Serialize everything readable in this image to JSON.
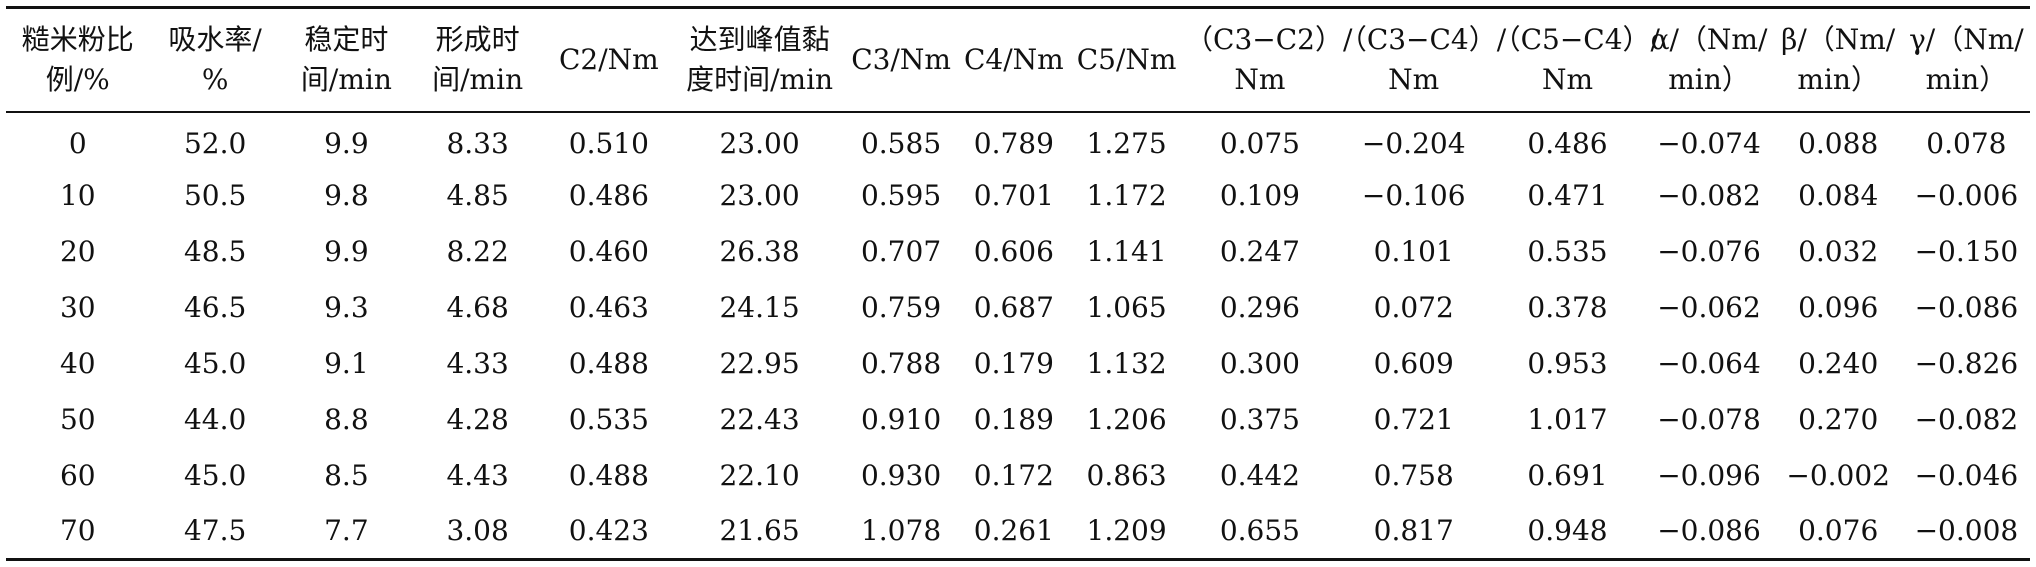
{
  "table": {
    "headers": [
      "糙米粉比\n例/%",
      "吸水率/\n%",
      "稳定时\n间/min",
      "形成时\n间/min",
      "C2/Nm",
      "达到峰值黏\n度时间/min",
      "C3/Nm",
      "C4/Nm",
      "C5/Nm",
      "（C3−C2）/\nNm",
      "（C3−C4）/\nNm",
      "（C5−C4）/\nNm",
      "α/（Nm/\nmin）",
      "β/（Nm/\nmin）",
      "γ/（Nm/\nmin）"
    ],
    "rows": [
      [
        "0",
        "52.0",
        "9.9",
        "8.33",
        "0.510",
        "23.00",
        "0.585",
        "0.789",
        "1.275",
        "0.075",
        "−0.204",
        "0.486",
        "−0.074",
        "0.088",
        "0.078"
      ],
      [
        "10",
        "50.5",
        "9.8",
        "4.85",
        "0.486",
        "23.00",
        "0.595",
        "0.701",
        "1.172",
        "0.109",
        "−0.106",
        "0.471",
        "−0.082",
        "0.084",
        "−0.006"
      ],
      [
        "20",
        "48.5",
        "9.9",
        "8.22",
        "0.460",
        "26.38",
        "0.707",
        "0.606",
        "1.141",
        "0.247",
        "0.101",
        "0.535",
        "−0.076",
        "0.032",
        "−0.150"
      ],
      [
        "30",
        "46.5",
        "9.3",
        "4.68",
        "0.463",
        "24.15",
        "0.759",
        "0.687",
        "1.065",
        "0.296",
        "0.072",
        "0.378",
        "−0.062",
        "0.096",
        "−0.086"
      ],
      [
        "40",
        "45.0",
        "9.1",
        "4.33",
        "0.488",
        "22.95",
        "0.788",
        "0.179",
        "1.132",
        "0.300",
        "0.609",
        "0.953",
        "−0.064",
        "0.240",
        "−0.826"
      ],
      [
        "50",
        "44.0",
        "8.8",
        "4.28",
        "0.535",
        "22.43",
        "0.910",
        "0.189",
        "1.206",
        "0.375",
        "0.721",
        "1.017",
        "−0.078",
        "0.270",
        "−0.082"
      ],
      [
        "60",
        "45.0",
        "8.5",
        "4.43",
        "0.488",
        "22.10",
        "0.930",
        "0.172",
        "0.863",
        "0.442",
        "0.758",
        "0.691",
        "−0.096",
        "−0.002",
        "−0.046"
      ],
      [
        "70",
        "47.5",
        "7.7",
        "3.08",
        "0.423",
        "21.65",
        "1.078",
        "0.261",
        "1.209",
        "0.655",
        "0.817",
        "0.948",
        "−0.086",
        "0.076",
        "−0.008"
      ]
    ]
  }
}
